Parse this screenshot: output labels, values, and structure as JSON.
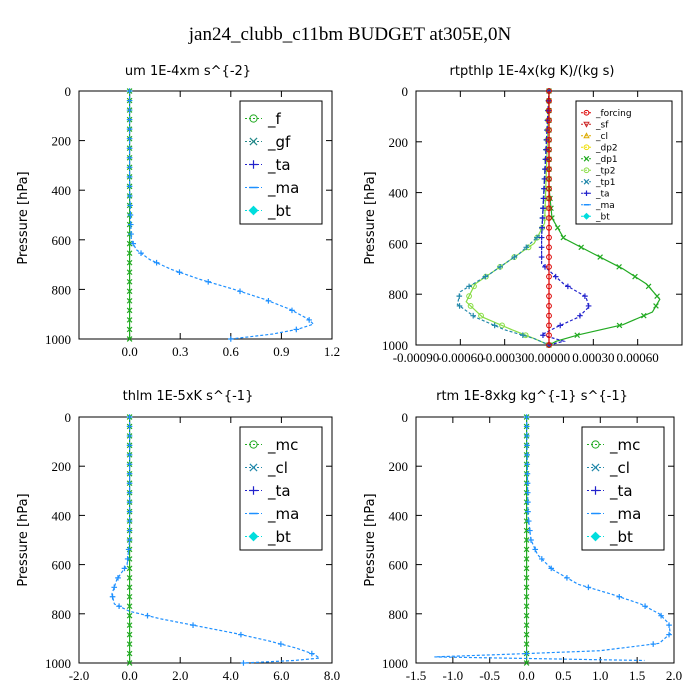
{
  "figure_title": "jan24_clubb_c11bm  BUDGET at305E,0N",
  "colors": {
    "blue_profile": "#1e90ff",
    "green_profile": "#22aa22",
    "red_profile": "#dd0000",
    "light_green": "#88dd44",
    "dark_blue": "#0000cc"
  },
  "chart_data": [
    {
      "type": "line",
      "title": "um  1E-4xm s^{-2}",
      "ylabel": "Pressure [hPa]",
      "xlim": [
        -0.3,
        1.2
      ],
      "ylim": [
        1000,
        0
      ],
      "x_ticks": [
        "0.0",
        "0.3",
        "0.6",
        "0.9",
        "1.2"
      ],
      "x_tick_values": [
        0,
        0.3,
        0.6,
        0.9,
        1.2
      ],
      "y_ticks": [
        "0",
        "200",
        "400",
        "600",
        "800",
        "1000"
      ],
      "y_tick_values": [
        0,
        200,
        400,
        600,
        800,
        1000
      ],
      "legend_position": "top-right",
      "legend_size": "large",
      "legend": [
        {
          "label": "_f",
          "color": "#22aa22",
          "marker": "o"
        },
        {
          "label": "_gf",
          "color": "#228888",
          "marker": "x"
        },
        {
          "label": "_ta",
          "color": "#2222cc",
          "marker": "+"
        },
        {
          "label": "_ma",
          "color": "#1e90ff",
          "marker": "-"
        },
        {
          "label": "_bt",
          "color": "#00dddd",
          "marker": "diamond"
        }
      ],
      "series": [
        {
          "color": "#22aa22",
          "x": [
            0,
            0,
            0,
            0
          ],
          "y": [
            0,
            400,
            800,
            1000
          ]
        },
        {
          "color": "#1e90ff",
          "x": [
            0,
            0,
            0.01,
            0.04,
            0.12,
            0.25,
            0.42,
            0.62,
            0.8,
            0.95,
            1.06,
            1.09,
            1.0,
            0.85,
            0.6
          ],
          "y": [
            0,
            400,
            600,
            640,
            680,
            720,
            760,
            800,
            840,
            880,
            920,
            940,
            960,
            980,
            1000
          ]
        }
      ]
    },
    {
      "type": "line",
      "title": "rtpthlp  1E-4x(kg K)/(kg s)",
      "ylabel": "Pressure [hPa]",
      "xlim": [
        -0.0009,
        0.0009
      ],
      "ylim": [
        1000,
        0
      ],
      "x_ticks": [
        "-0.00090",
        "-0.00060",
        "-0.00030",
        "0.00000",
        "0.00030",
        "0.00060"
      ],
      "x_tick_values": [
        -0.0009,
        -0.0006,
        -0.0003,
        0,
        0.0003,
        0.0006
      ],
      "y_ticks": [
        "0",
        "200",
        "400",
        "600",
        "800",
        "1000"
      ],
      "y_tick_values": [
        0,
        200,
        400,
        600,
        800,
        1000
      ],
      "legend_position": "top-right",
      "legend_size": "small",
      "legend": [
        {
          "label": "_forcing",
          "color": "#dd0000",
          "marker": "o"
        },
        {
          "label": "_sf",
          "color": "#cc2222",
          "marker": "v"
        },
        {
          "label": "_cl",
          "color": "#ddaa00",
          "marker": "^"
        },
        {
          "label": "_dp2",
          "color": "#eedd00",
          "marker": "o"
        },
        {
          "label": "_dp1",
          "color": "#22aa22",
          "marker": "x"
        },
        {
          "label": "_tp2",
          "color": "#88dd44",
          "marker": "o"
        },
        {
          "label": "_tp1",
          "color": "#2288aa",
          "marker": "x"
        },
        {
          "label": "_ta",
          "color": "#2222cc",
          "marker": "+"
        },
        {
          "label": "_ma",
          "color": "#1e90ff",
          "marker": "-"
        },
        {
          "label": "_bt",
          "color": "#00dddd",
          "marker": "diamond"
        }
      ],
      "series": [
        {
          "color": "#22aa22",
          "x": [
            0,
            0,
            2e-05,
            0.0001,
            0.0003,
            0.0005,
            0.00066,
            0.00075,
            0.0007,
            0.0005,
            0.0002,
            5e-05,
            0
          ],
          "y": [
            0,
            380,
            500,
            580,
            640,
            700,
            760,
            820,
            870,
            920,
            960,
            985,
            1000
          ]
        },
        {
          "color": "#88dd44",
          "x": [
            0,
            -3e-05,
            -0.0001,
            -0.0003,
            -0.0005,
            -0.00056,
            -0.00045,
            -0.00025,
            -0.0001,
            0
          ],
          "y": [
            0,
            520,
            600,
            680,
            760,
            830,
            890,
            940,
            975,
            1000
          ]
        },
        {
          "color": "#2288aa",
          "x": [
            0,
            -5e-05,
            -0.0002,
            -0.0004,
            -0.0006,
            -0.00062,
            -0.0005,
            -0.0003,
            -0.0001,
            0
          ],
          "y": [
            0,
            560,
            640,
            720,
            790,
            840,
            890,
            940,
            975,
            1000
          ]
        },
        {
          "color": "#2222cc",
          "x": [
            0,
            -5e-05,
            -5e-05,
            0.0001,
            0.00025,
            0.00027,
            0.0002,
            5e-05,
            -5e-05,
            0.0001,
            0
          ],
          "y": [
            0,
            580,
            680,
            760,
            810,
            850,
            890,
            930,
            960,
            985,
            1000
          ]
        },
        {
          "color": "#dd0000",
          "x": [
            0,
            0
          ],
          "y": [
            0,
            1000
          ]
        }
      ]
    },
    {
      "type": "line",
      "title": "thlm  1E-5xK s^{-1}",
      "ylabel": "Pressure [hPa]",
      "xlim": [
        -2.0,
        8.0
      ],
      "ylim": [
        1000,
        0
      ],
      "x_ticks": [
        "-2.0",
        "0.0",
        "2.0",
        "4.0",
        "6.0",
        "8.0"
      ],
      "x_tick_values": [
        -2,
        0,
        2,
        4,
        6,
        8
      ],
      "y_ticks": [
        "0",
        "200",
        "400",
        "600",
        "800",
        "1000"
      ],
      "y_tick_values": [
        0,
        200,
        400,
        600,
        800,
        1000
      ],
      "legend_position": "top-right",
      "legend_size": "large",
      "legend": [
        {
          "label": "_mc",
          "color": "#22aa22",
          "marker": "o"
        },
        {
          "label": "_cl",
          "color": "#2288aa",
          "marker": "x"
        },
        {
          "label": "_ta",
          "color": "#2222cc",
          "marker": "+"
        },
        {
          "label": "_ma",
          "color": "#1e90ff",
          "marker": "-"
        },
        {
          "label": "_bt",
          "color": "#00dddd",
          "marker": "diamond"
        }
      ],
      "series": [
        {
          "color": "#22aa22",
          "x": [
            0,
            0,
            0,
            0
          ],
          "y": [
            0,
            400,
            800,
            1000
          ]
        },
        {
          "color": "#1e90ff",
          "x": [
            0,
            0,
            -0.1,
            -0.5,
            -0.7,
            -0.6,
            0,
            1.2,
            2.7,
            4.2,
            5.5,
            6.6,
            7.3,
            7.5,
            6.5,
            4.5
          ],
          "y": [
            0,
            500,
            600,
            660,
            720,
            760,
            790,
            820,
            850,
            880,
            910,
            940,
            965,
            980,
            990,
            1000
          ]
        }
      ]
    },
    {
      "type": "line",
      "title": "rtm  1E-8xkg kg^{-1} s^{-1}",
      "ylabel": "Pressure [hPa]",
      "xlim": [
        -1.5,
        2.0
      ],
      "ylim": [
        1000,
        0
      ],
      "x_ticks": [
        "-1.5",
        "-1.0",
        "-0.5",
        "0.0",
        "0.5",
        "1.0",
        "1.5",
        "2.0"
      ],
      "x_tick_values": [
        -1.5,
        -1,
        -0.5,
        0,
        0.5,
        1,
        1.5,
        2
      ],
      "y_ticks": [
        "0",
        "200",
        "400",
        "600",
        "800",
        "1000"
      ],
      "y_tick_values": [
        0,
        200,
        400,
        600,
        800,
        1000
      ],
      "legend_position": "top-right",
      "legend_size": "large",
      "legend": [
        {
          "label": "_mc",
          "color": "#22aa22",
          "marker": "o"
        },
        {
          "label": "_cl",
          "color": "#2288aa",
          "marker": "x"
        },
        {
          "label": "_ta",
          "color": "#2222cc",
          "marker": "+"
        },
        {
          "label": "_ma",
          "color": "#1e90ff",
          "marker": "-"
        },
        {
          "label": "_bt",
          "color": "#00dddd",
          "marker": "diamond"
        }
      ],
      "series": [
        {
          "color": "#22aa22",
          "x": [
            0,
            0,
            0,
            0
          ],
          "y": [
            0,
            400,
            800,
            1000
          ]
        },
        {
          "color": "#1e90ff",
          "x": [
            0,
            0.02,
            0.06,
            0.15,
            0.35,
            0.7,
            1.15,
            1.55,
            1.8,
            1.93,
            1.95,
            1.8,
            1.0,
            -0.3,
            -1.25,
            1.6
          ],
          "y": [
            0,
            400,
            500,
            560,
            620,
            680,
            720,
            760,
            800,
            840,
            880,
            920,
            950,
            965,
            975,
            990
          ]
        }
      ]
    }
  ]
}
